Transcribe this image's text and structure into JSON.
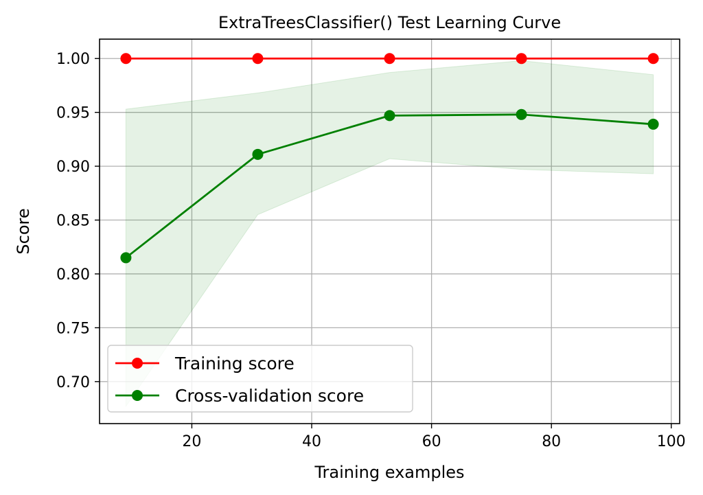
{
  "chart_data": {
    "type": "line",
    "title": "ExtraTreesClassifier() Test Learning Curve",
    "xlabel": "Training examples",
    "ylabel": "Score",
    "xlim": [
      4.6,
      101.4
    ],
    "ylim": [
      0.661,
      1.018
    ],
    "x_ticks": [
      20,
      40,
      60,
      80,
      100
    ],
    "y_ticks": [
      0.7,
      0.75,
      0.8,
      0.85,
      0.9,
      0.95,
      1.0
    ],
    "y_tick_labels": [
      "0.70",
      "0.75",
      "0.80",
      "0.85",
      "0.90",
      "0.95",
      "1.00"
    ],
    "x_tick_labels": [
      "20",
      "40",
      "60",
      "80",
      "100"
    ],
    "grid": true,
    "legend_position": "lower-left",
    "x": [
      9,
      31,
      53,
      75,
      97
    ],
    "series": [
      {
        "name": "Training score",
        "color": "#ff0000",
        "values": [
          1.0,
          1.0,
          1.0,
          1.0,
          1.0
        ],
        "band_low": [
          1.0,
          1.0,
          1.0,
          1.0,
          1.0
        ],
        "band_high": [
          1.0,
          1.0,
          1.0,
          1.0,
          1.0
        ]
      },
      {
        "name": "Cross-validation score",
        "color": "#008000",
        "values": [
          0.815,
          0.911,
          0.947,
          0.948,
          0.939
        ],
        "band_low": [
          0.677,
          0.855,
          0.907,
          0.897,
          0.893
        ],
        "band_high": [
          0.953,
          0.968,
          0.987,
          0.998,
          0.985
        ],
        "band_color": "#008000",
        "band_opacity": 0.1
      }
    ]
  }
}
